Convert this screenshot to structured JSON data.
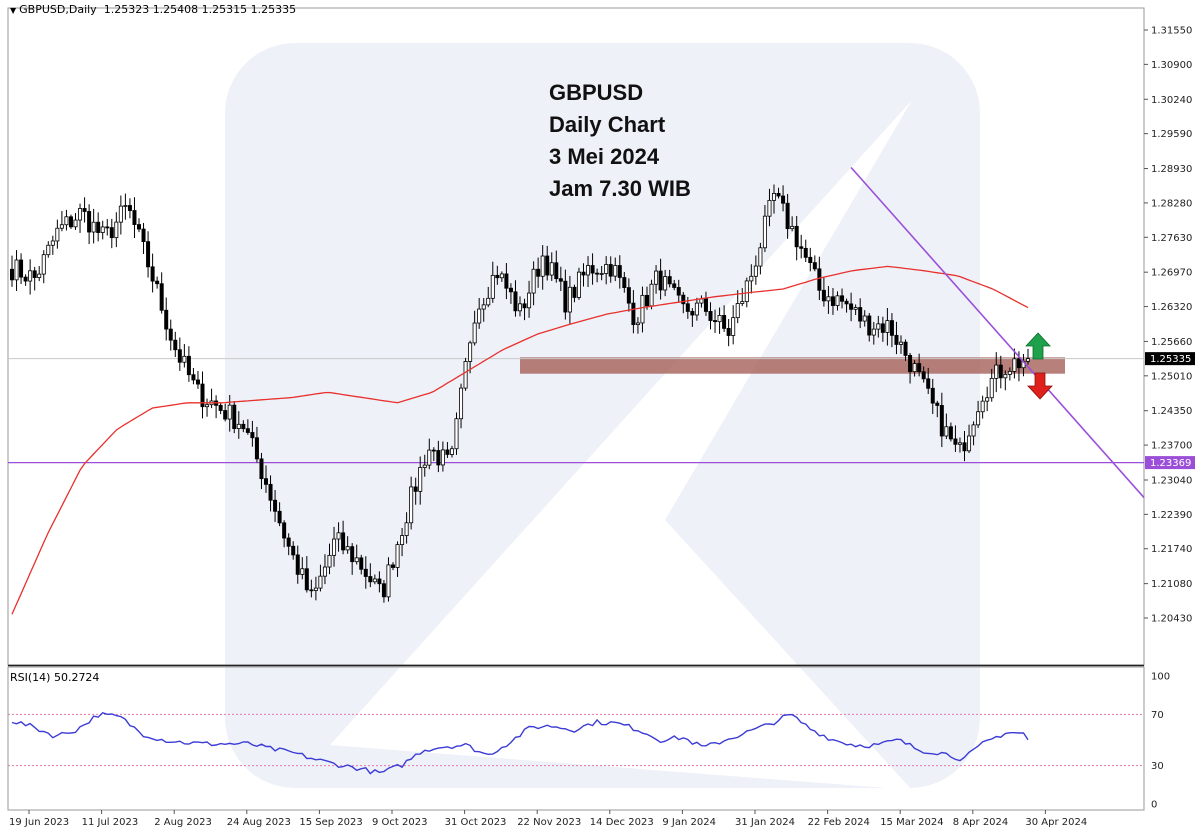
{
  "header": {
    "symbol": "GBPUSD,Daily",
    "ohlc": "1.25323 1.25408 1.25315 1.25335"
  },
  "annotation": [
    "GBPUSD",
    "Daily Chart",
    "3 Mei 2024",
    "Jam 7.30 WIB"
  ],
  "rsi_header": "RSI(14) 50.2724",
  "colors": {
    "ma": "#e8302c",
    "rsi": "#3b3bd6",
    "trendline": "#9b4fd8",
    "support_line": "#9b4fd8",
    "zone": "#a0554e",
    "up_arrow": "#1fa04a",
    "down_arrow": "#e0201c",
    "bull_candle": "#ffffff",
    "bear_candle": "#000000"
  },
  "chart_data": {
    "type": "candlestick",
    "symbol": "GBPUSD",
    "timeframe": "Daily",
    "x_tick_labels": [
      "19 Jun 2023",
      "11 Jul 2023",
      "2 Aug 2023",
      "24 Aug 2023",
      "15 Sep 2023",
      "9 Oct 2023",
      "31 Oct 2023",
      "22 Nov 2023",
      "14 Dec 2023",
      "9 Jan 2024",
      "31 Jan 2024",
      "22 Feb 2024",
      "15 Mar 2024",
      "8 Apr 2024",
      "30 Apr 2024"
    ],
    "y_tick_labels": [
      "1.31550",
      "1.30900",
      "1.30240",
      "1.29590",
      "1.28930",
      "1.28280",
      "1.27630",
      "1.26970",
      "1.26320",
      "1.25660",
      "1.25010",
      "1.24350",
      "1.23700",
      "1.23040",
      "1.22390",
      "1.21740",
      "1.21080",
      "1.20430"
    ],
    "ylim": [
      1.2005,
      1.3188
    ],
    "current_price": 1.25335,
    "current_price_label": "1.25335",
    "support_level": 1.23369,
    "support_level_label": "1.23369",
    "resistance_zone": [
      1.2505,
      1.2536
    ],
    "trendline": {
      "from": [
        "22 Feb 2024",
        1.2895
      ],
      "to": [
        "30 Apr 2024",
        1.2518
      ]
    },
    "rsi": {
      "period": 14,
      "current": 50.2724,
      "levels": [
        70,
        30
      ],
      "ylim": [
        0,
        100
      ],
      "tick_labels": [
        "100",
        "70",
        "30",
        "0"
      ]
    },
    "series": [
      {
        "name": "GBPUSD",
        "anchors": [
          1.2705,
          1.2685,
          1.2775,
          1.281,
          1.276,
          1.282,
          1.27,
          1.256,
          1.247,
          1.244,
          1.241,
          1.23,
          1.2175,
          1.2075,
          1.219,
          1.215,
          1.2085,
          1.223,
          1.2365,
          1.233,
          1.262,
          1.27,
          1.262,
          1.273,
          1.264,
          1.2705,
          1.271,
          1.261,
          1.269,
          1.2625,
          1.263,
          1.258,
          1.269,
          1.284,
          1.276,
          1.266,
          1.264,
          1.26,
          1.2595,
          1.252,
          1.243,
          1.235,
          1.247,
          1.252,
          1.2533
        ]
      },
      {
        "name": "MA",
        "anchors": [
          1.205,
          1.22,
          1.233,
          1.24,
          1.244,
          1.245,
          1.245,
          1.2455,
          1.246,
          1.247,
          1.246,
          1.245,
          1.247,
          1.251,
          1.255,
          1.258,
          1.26,
          1.2618,
          1.263,
          1.264,
          1.265,
          1.2658,
          1.2665,
          1.2685,
          1.27,
          1.2708,
          1.27,
          1.269,
          1.2665,
          1.263
        ]
      },
      {
        "name": "RSI(14)",
        "anchors": [
          65,
          60,
          53,
          58,
          70,
          68,
          55,
          50,
          48,
          47,
          47,
          47,
          43,
          40,
          35,
          31,
          28,
          24,
          30,
          42,
          45,
          46,
          38,
          48,
          60,
          61,
          58,
          64,
          63,
          58,
          50,
          52,
          44,
          50,
          56,
          62,
          70,
          58,
          50,
          46,
          46,
          50,
          42,
          40,
          35,
          48,
          56,
          55
        ]
      }
    ]
  }
}
